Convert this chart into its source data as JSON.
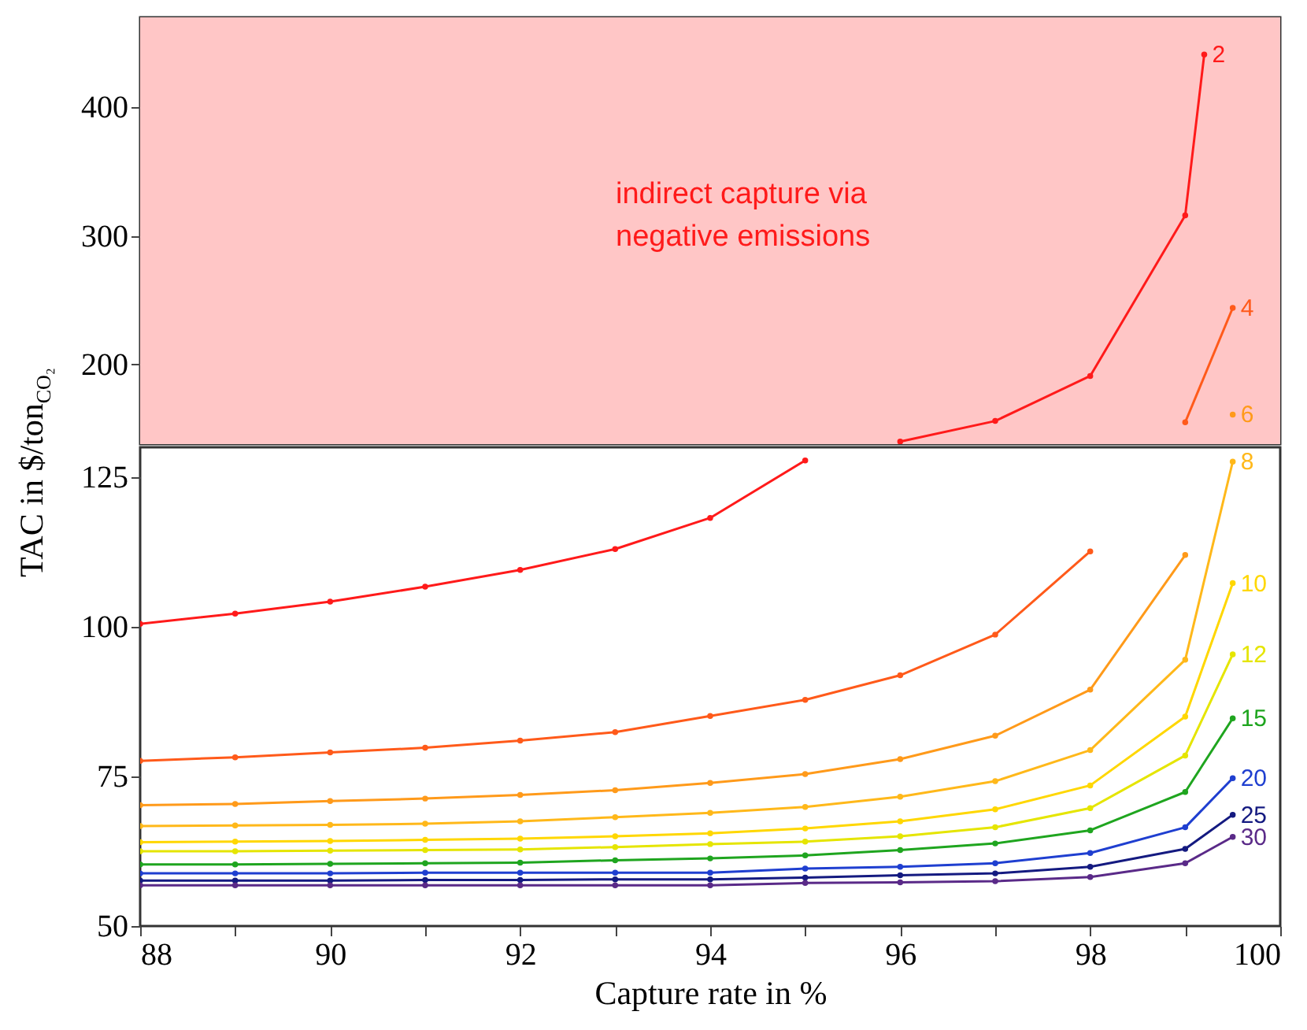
{
  "chart_data": [
    {
      "type": "line",
      "ylabel": "TAC in $/ton$_{CO₂}$",
      "xlim": [
        88,
        100
      ],
      "ylim": [
        138,
        470
      ],
      "yticks": [
        200,
        300,
        400
      ],
      "tick_labels": "y",
      "grid": false,
      "legend": false,
      "marker": "circle",
      "bands": [
        {
          "axis": "y",
          "from": 138,
          "to": 470,
          "color": "#ffc6c6"
        }
      ],
      "annotations": [
        "indirect capture via\nnegative emissions"
      ],
      "series": [
        {
          "name": "2",
          "color": "#ff1a1a",
          "x": [
            96,
            97,
            98,
            99,
            99.2
          ],
          "values": [
            140,
            156,
            191,
            316,
            441
          ]
        },
        {
          "name": "4",
          "color": "#ff5a1a",
          "x": [
            99,
            99.5
          ],
          "values": [
            155,
            244
          ]
        },
        {
          "name": "6",
          "color": "#ff9a1a",
          "x": [
            99.5
          ],
          "values": [
            161
          ]
        }
      ]
    },
    {
      "type": "line",
      "xlabel": "Capture rate in %",
      "xlim": [
        88,
        100
      ],
      "ylim": [
        50,
        130
      ],
      "yticks": [
        50,
        75,
        100,
        125
      ],
      "grid": false,
      "legend": false,
      "marker": "circle",
      "xticks": [
        88,
        {
          "value": 89,
          "label": null
        },
        90,
        {
          "value": 91,
          "label": null
        },
        92,
        {
          "value": 93,
          "label": null
        },
        94,
        {
          "value": 95,
          "label": null
        },
        96,
        {
          "value": 97,
          "label": null
        },
        98,
        {
          "value": 99,
          "label": null
        },
        100
      ],
      "x": [
        88,
        89,
        90,
        91,
        92,
        93,
        94,
        95,
        96,
        97,
        98,
        99,
        99.5
      ],
      "series": [
        {
          "color": "#ff1a1a",
          "x": [
            88,
            89,
            90,
            91,
            92,
            93,
            94,
            95
          ],
          "values": [
            100.5,
            102.2,
            104.2,
            106.7,
            109.5,
            113,
            118.2,
            127.8
          ]
        },
        {
          "color": "#ff5a1a",
          "x": [
            88,
            89,
            90,
            91,
            92,
            93,
            94,
            95,
            96,
            97,
            98
          ],
          "values": [
            77.6,
            78.2,
            79.0,
            79.8,
            81.0,
            82.4,
            85.1,
            87.8,
            91.9,
            98.7,
            112.6
          ]
        },
        {
          "color": "#ff9a1a",
          "x": [
            88,
            89,
            90,
            91,
            92,
            93,
            94,
            95,
            96,
            97,
            98,
            99
          ],
          "values": [
            70.2,
            70.4,
            70.9,
            71.3,
            71.9,
            72.7,
            73.9,
            75.4,
            77.9,
            81.8,
            89.5,
            112
          ]
        },
        {
          "name": "8",
          "color": "#ffb81a",
          "values": [
            66.7,
            66.8,
            66.9,
            67.1,
            67.5,
            68.2,
            68.9,
            69.9,
            71.6,
            74.2,
            79.4,
            94.5,
            127.6
          ]
        },
        {
          "name": "10",
          "color": "#ffd700",
          "values": [
            64.0,
            64.1,
            64.2,
            64.4,
            64.6,
            65.0,
            65.5,
            66.3,
            67.5,
            69.5,
            73.5,
            85,
            107.3
          ]
        },
        {
          "name": "12",
          "color": "#e5e500",
          "values": [
            62.5,
            62.5,
            62.6,
            62.7,
            62.8,
            63.2,
            63.7,
            64.1,
            65.0,
            66.5,
            69.7,
            78.5,
            95.4
          ]
        },
        {
          "name": "15",
          "color": "#1fa51f",
          "values": [
            60.3,
            60.3,
            60.4,
            60.5,
            60.6,
            61.0,
            61.3,
            61.8,
            62.7,
            63.8,
            66.0,
            72.4,
            84.7
          ]
        },
        {
          "name": "20",
          "color": "#1f3fd0",
          "values": [
            58.8,
            58.8,
            58.8,
            58.9,
            58.9,
            58.9,
            58.9,
            59.6,
            59.9,
            60.5,
            62.2,
            66.5,
            74.7
          ]
        },
        {
          "name": "25",
          "color": "#141a80",
          "values": [
            57.6,
            57.6,
            57.6,
            57.7,
            57.7,
            57.8,
            57.8,
            58.1,
            58.5,
            58.8,
            59.9,
            62.9,
            68.6
          ]
        },
        {
          "name": "30",
          "color": "#5a2a88",
          "values": [
            56.8,
            56.8,
            56.8,
            56.8,
            56.8,
            56.8,
            56.8,
            57.2,
            57.3,
            57.5,
            58.2,
            60.5,
            64.9
          ]
        }
      ]
    }
  ]
}
